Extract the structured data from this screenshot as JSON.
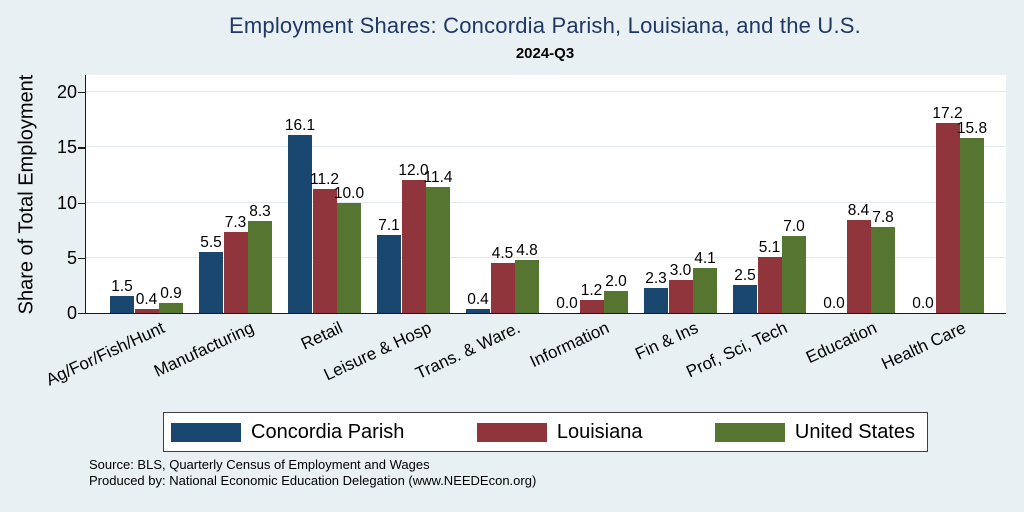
{
  "chart_data": {
    "type": "bar",
    "title": "Employment Shares: Concordia Parish, Louisiana, and the U.S.",
    "subtitle": "2024-Q3",
    "ylabel": "Share of Total Employment",
    "xlabel": "",
    "ylim": [
      0,
      20
    ],
    "yticks": [
      0,
      5,
      10,
      15,
      20
    ],
    "grid": true,
    "legend_position": "bottom",
    "categories": [
      "Ag/For/Fish/Hunt",
      "Manufacturing",
      "Retail",
      "Leisure & Hosp",
      "Trans. & Ware.",
      "Information",
      "Fin & Ins",
      "Prof, Sci, Tech",
      "Education",
      "Health Care"
    ],
    "series": [
      {
        "name": "Concordia Parish",
        "color": "#1a476f",
        "values": [
          1.5,
          5.5,
          16.1,
          7.1,
          0.4,
          0.0,
          2.3,
          2.5,
          0.0,
          0.0
        ]
      },
      {
        "name": "Louisiana",
        "color": "#90353b",
        "values": [
          0.4,
          7.3,
          11.2,
          12.0,
          4.5,
          1.2,
          3.0,
          5.1,
          8.4,
          17.2
        ]
      },
      {
        "name": "United States",
        "color": "#557530",
        "values": [
          0.9,
          8.3,
          10.0,
          11.4,
          4.8,
          2.0,
          4.1,
          7.0,
          7.8,
          15.8
        ]
      }
    ]
  },
  "colors": {
    "background": "#e9f0f3",
    "plot_background": "#ffffff",
    "gridline": "#dfe9ee",
    "title": "#1f3864",
    "series": [
      "#1a476f",
      "#90353b",
      "#557530"
    ]
  },
  "notes": {
    "source": "Source: BLS, Quarterly Census of Employment and Wages",
    "produced_by": "Produced by: National Economic Education Delegation (www.NEEDEcon.org)"
  }
}
